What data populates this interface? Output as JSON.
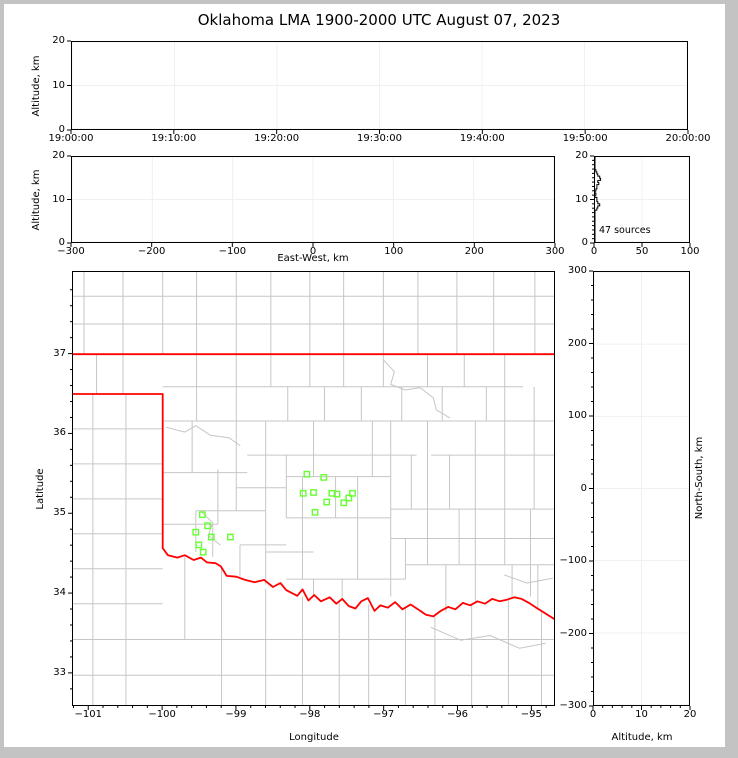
{
  "title": "Oklahoma LMA 1900-2000 UTC August 07, 2023",
  "colors": {
    "figure_frame": "#c3c3c3",
    "background": "#ffffff",
    "axis": "#000000",
    "grid": "#f0f0f0",
    "county": "#c6c6c6",
    "state_border": "#ff0000",
    "source_marker": "#66ff33",
    "histogram_line": "#000000"
  },
  "axes": {
    "p1": {
      "ylabel": "Altitude, km",
      "xlim": [
        0,
        3600
      ],
      "ylim": [
        0,
        20
      ],
      "xticks": [
        {
          "v": 0,
          "t": "19:00:00"
        },
        {
          "v": 600,
          "t": "19:10:00"
        },
        {
          "v": 1200,
          "t": "19:20:00"
        },
        {
          "v": 1800,
          "t": "19:30:00"
        },
        {
          "v": 2400,
          "t": "19:40:00"
        },
        {
          "v": 3000,
          "t": "19:50:00"
        },
        {
          "v": 3600,
          "t": "20:00:00"
        }
      ],
      "yticks": [
        {
          "v": 0,
          "t": "0"
        },
        {
          "v": 10,
          "t": "10"
        },
        {
          "v": 20,
          "t": "20"
        }
      ]
    },
    "p2": {
      "ylabel": "Altitude, km",
      "xlabel": "East-West, km",
      "xlim": [
        -300,
        300
      ],
      "ylim": [
        0,
        20
      ],
      "xticks": [
        {
          "v": -300,
          "t": "−300"
        },
        {
          "v": -200,
          "t": "−200"
        },
        {
          "v": -100,
          "t": "−100"
        },
        {
          "v": 0,
          "t": "0"
        },
        {
          "v": 100,
          "t": "100"
        },
        {
          "v": 200,
          "t": "200"
        },
        {
          "v": 300,
          "t": "300"
        }
      ],
      "yticks": [
        {
          "v": 0,
          "t": "0"
        },
        {
          "v": 10,
          "t": "10"
        },
        {
          "v": 20,
          "t": "20"
        }
      ]
    },
    "p3": {
      "annotation": "47 sources",
      "xlim": [
        0,
        100
      ],
      "ylim": [
        0,
        20
      ],
      "xticks": [
        {
          "v": 0,
          "t": "0"
        },
        {
          "v": 50,
          "t": "50"
        },
        {
          "v": 100,
          "t": "100"
        }
      ],
      "yticks": [
        {
          "v": 0,
          "t": "0"
        },
        {
          "v": 10,
          "t": "10"
        },
        {
          "v": 20,
          "t": "20"
        }
      ]
    },
    "p4": {
      "xlabel": "Longitude",
      "ylabel": "Latitude",
      "xlim": [
        -101.22,
        -94.68
      ],
      "ylim": [
        32.585,
        38.035
      ],
      "xticks": [
        {
          "v": -101,
          "t": "−101"
        },
        {
          "v": -100,
          "t": "−100"
        },
        {
          "v": -99,
          "t": "−99"
        },
        {
          "v": -98,
          "t": "−98"
        },
        {
          "v": -97,
          "t": "−97"
        },
        {
          "v": -96,
          "t": "−96"
        },
        {
          "v": -95,
          "t": "−95"
        }
      ],
      "yticks": [
        {
          "v": 33,
          "t": "33"
        },
        {
          "v": 34,
          "t": "34"
        },
        {
          "v": 35,
          "t": "35"
        },
        {
          "v": 36,
          "t": "36"
        },
        {
          "v": 37,
          "t": "37"
        }
      ]
    },
    "p5": {
      "xlabel": "Altitude, km",
      "ylabel": "North-South, km",
      "xlim": [
        0,
        20
      ],
      "ylim": [
        -300,
        300
      ],
      "xticks": [
        {
          "v": 0,
          "t": "0"
        },
        {
          "v": 10,
          "t": "10"
        },
        {
          "v": 20,
          "t": "20"
        }
      ],
      "yticks": [
        {
          "v": 300,
          "t": "300"
        },
        {
          "v": 200,
          "t": "200"
        },
        {
          "v": 100,
          "t": "100"
        },
        {
          "v": 0,
          "t": "0"
        },
        {
          "v": -100,
          "t": "−100"
        },
        {
          "v": -200,
          "t": "−200"
        },
        {
          "v": -300,
          "t": "−300"
        }
      ]
    }
  },
  "chart_data": [
    {
      "id": "time_height",
      "type": "scatter",
      "xlabel": "",
      "ylabel": "Altitude, km",
      "x_window_utc": [
        "19:00:00",
        "20:00:00"
      ],
      "ylim": [
        0,
        20
      ],
      "points": []
    },
    {
      "id": "ew_height",
      "type": "scatter",
      "xlabel": "East-West, km",
      "ylabel": "Altitude, km",
      "xlim": [
        -300,
        300
      ],
      "ylim": [
        0,
        20
      ],
      "points": []
    },
    {
      "id": "alt_histogram",
      "type": "line",
      "annotation": "47 sources",
      "total_sources": 47,
      "xlim": [
        0,
        100
      ],
      "ylim": [
        0,
        20
      ],
      "bins_alt0_alt1_count": [
        [
          7.5,
          8,
          2
        ],
        [
          8,
          8.5,
          3
        ],
        [
          8.5,
          9,
          5
        ],
        [
          9,
          9.5,
          3
        ],
        [
          9.5,
          10,
          2
        ],
        [
          10,
          10.5,
          2
        ],
        [
          11,
          11.5,
          1
        ],
        [
          12,
          12.5,
          1
        ],
        [
          12.5,
          13,
          2
        ],
        [
          13,
          13.5,
          2
        ],
        [
          13.5,
          14,
          4
        ],
        [
          14,
          14.5,
          3
        ],
        [
          14.5,
          15,
          6
        ],
        [
          15,
          15.5,
          5
        ],
        [
          15.5,
          16,
          3
        ],
        [
          16,
          16.5,
          2
        ],
        [
          16.5,
          17,
          1
        ]
      ]
    },
    {
      "id": "plan_view",
      "type": "scatter",
      "xlabel": "Longitude",
      "ylabel": "Latitude",
      "xlim": [
        -101.22,
        -94.68
      ],
      "ylim": [
        32.585,
        38.035
      ],
      "marker": "open-square",
      "marker_color": "#66ff33",
      "points": [
        [
          -98.04,
          35.49
        ],
        [
          -97.81,
          35.45
        ],
        [
          -98.09,
          35.25
        ],
        [
          -97.95,
          35.26
        ],
        [
          -97.7,
          35.25
        ],
        [
          -97.63,
          35.24
        ],
        [
          -97.77,
          35.14
        ],
        [
          -97.54,
          35.13
        ],
        [
          -97.47,
          35.19
        ],
        [
          -97.42,
          35.25
        ],
        [
          -97.93,
          35.01
        ],
        [
          -99.46,
          34.98
        ],
        [
          -99.39,
          34.84
        ],
        [
          -99.55,
          34.76
        ],
        [
          -99.34,
          34.7
        ],
        [
          -99.08,
          34.7
        ],
        [
          -99.51,
          34.6
        ],
        [
          -99.45,
          34.51
        ]
      ]
    },
    {
      "id": "ns_height",
      "type": "scatter",
      "xlabel": "Altitude, km",
      "ylabel": "North-South, km",
      "xlim": [
        0,
        20
      ],
      "ylim": [
        -300,
        300
      ],
      "points": []
    }
  ],
  "map": {
    "state_border": {
      "north": [
        [
          -101.22,
          37
        ],
        [
          -94.68,
          37
        ]
      ],
      "panhandle": [
        [
          -101.22,
          36.5
        ],
        [
          -100,
          36.5
        ],
        [
          -100,
          34.56
        ]
      ],
      "red_river": [
        [
          -100,
          34.56
        ],
        [
          -99.93,
          34.47
        ],
        [
          -99.8,
          34.44
        ],
        [
          -99.7,
          34.47
        ],
        [
          -99.58,
          34.41
        ],
        [
          -99.48,
          34.44
        ],
        [
          -99.4,
          34.38
        ],
        [
          -99.28,
          34.37
        ],
        [
          -99.21,
          34.33
        ],
        [
          -99.13,
          34.21
        ],
        [
          -99,
          34.2
        ],
        [
          -98.88,
          34.16
        ],
        [
          -98.75,
          34.13
        ],
        [
          -98.62,
          34.16
        ],
        [
          -98.5,
          34.07
        ],
        [
          -98.4,
          34.12
        ],
        [
          -98.32,
          34.03
        ],
        [
          -98.17,
          33.96
        ],
        [
          -98.1,
          34.04
        ],
        [
          -98.02,
          33.9
        ],
        [
          -97.94,
          33.97
        ],
        [
          -97.85,
          33.89
        ],
        [
          -97.73,
          33.94
        ],
        [
          -97.64,
          33.86
        ],
        [
          -97.56,
          33.92
        ],
        [
          -97.47,
          33.83
        ],
        [
          -97.38,
          33.8
        ],
        [
          -97.3,
          33.89
        ],
        [
          -97.21,
          33.93
        ],
        [
          -97.12,
          33.77
        ],
        [
          -97.04,
          33.84
        ],
        [
          -96.94,
          33.81
        ],
        [
          -96.84,
          33.88
        ],
        [
          -96.74,
          33.79
        ],
        [
          -96.63,
          33.85
        ],
        [
          -96.53,
          33.79
        ],
        [
          -96.42,
          33.72
        ],
        [
          -96.32,
          33.7
        ],
        [
          -96.22,
          33.77
        ],
        [
          -96.12,
          33.82
        ],
        [
          -96.02,
          33.79
        ],
        [
          -95.92,
          33.87
        ],
        [
          -95.82,
          33.84
        ],
        [
          -95.72,
          33.89
        ],
        [
          -95.62,
          33.86
        ],
        [
          -95.52,
          33.92
        ],
        [
          -95.42,
          33.89
        ],
        [
          -95.32,
          33.91
        ],
        [
          -95.22,
          33.94
        ],
        [
          -95.12,
          33.92
        ],
        [
          -95.02,
          33.87
        ],
        [
          -94.92,
          33.81
        ],
        [
          -94.82,
          33.75
        ],
        [
          -94.68,
          33.67
        ]
      ]
    },
    "county_cols": [
      [
        -101.07,
        37,
        38.04
      ],
      [
        -100.54,
        37,
        38.04
      ],
      [
        -100,
        37,
        38.04
      ],
      [
        -99.54,
        37,
        38.04
      ],
      [
        -99,
        37,
        38.04
      ],
      [
        -98.53,
        37,
        38.04
      ],
      [
        -98,
        37,
        38.04
      ],
      [
        -97.54,
        37,
        38.04
      ],
      [
        -97,
        37,
        38.04
      ],
      [
        -96.53,
        37,
        38.04
      ],
      [
        -96,
        37,
        38.04
      ],
      [
        -95.5,
        37,
        38.04
      ],
      [
        -94.94,
        37,
        38.04
      ],
      [
        -100.9,
        36.5,
        37
      ],
      [
        -100.54,
        36.5,
        37
      ],
      [
        -100.95,
        32.58,
        36.5
      ],
      [
        -100.5,
        32.58,
        36.5
      ],
      [
        -99.54,
        36.16,
        37
      ],
      [
        -99,
        36.16,
        37
      ],
      [
        -98.53,
        36.59,
        37
      ],
      [
        -98.3,
        36.16,
        36.59
      ],
      [
        -98,
        36.59,
        37
      ],
      [
        -97.8,
        36.16,
        36.59
      ],
      [
        -97.54,
        36.59,
        37
      ],
      [
        -97.3,
        36.16,
        36.59
      ],
      [
        -97,
        36.59,
        37
      ],
      [
        -96.75,
        36.16,
        36.59
      ],
      [
        -96.4,
        36.59,
        37
      ],
      [
        -96.2,
        36.16,
        36.59
      ],
      [
        -95.9,
        36.59,
        37
      ],
      [
        -95.6,
        36.16,
        36.59
      ],
      [
        -95.35,
        36.16,
        37
      ],
      [
        -94.95,
        36.16,
        36.59
      ],
      [
        -99.6,
        35.51,
        36.16
      ],
      [
        -99.25,
        34.86,
        35.55
      ],
      [
        -99,
        35.03,
        36.16
      ],
      [
        -98.6,
        34.6,
        36.16
      ],
      [
        -98.32,
        34.94,
        35.73
      ],
      [
        -98.1,
        34.17,
        35.46
      ],
      [
        -97.95,
        35.46,
        36.16
      ],
      [
        -97.65,
        34.94,
        35.46
      ],
      [
        -97.35,
        34.17,
        35.46
      ],
      [
        -97.15,
        35.46,
        36.16
      ],
      [
        -96.9,
        33.95,
        36.16
      ],
      [
        -96.62,
        35.05,
        35.73
      ],
      [
        -96.4,
        34.35,
        36.16
      ],
      [
        -96.1,
        35.05,
        35.73
      ],
      [
        -95.97,
        34.35,
        35.05
      ],
      [
        -95.75,
        35.05,
        36.16
      ],
      [
        -95.35,
        34.35,
        36.16
      ],
      [
        -95,
        33.95,
        35.05
      ],
      [
        -94.95,
        35.05,
        36.16
      ],
      [
        -99.55,
        34.51,
        35.03
      ],
      [
        -99.32,
        34.45,
        34.86
      ],
      [
        -98.95,
        34.2,
        34.6
      ],
      [
        -98.6,
        34.1,
        34.6
      ],
      [
        -97.95,
        33.95,
        34.17
      ],
      [
        -97.56,
        33.9,
        34.17
      ],
      [
        -96.7,
        34.17,
        34.68
      ],
      [
        -96.15,
        33.75,
        34.35
      ],
      [
        -95.75,
        33.88,
        35.05
      ],
      [
        -95.25,
        33.93,
        34.35
      ],
      [
        -94.9,
        33.8,
        34.35
      ],
      [
        -99.7,
        33.41,
        34.45
      ],
      [
        -99.2,
        32.58,
        34.32
      ],
      [
        -98.6,
        32.58,
        34.05
      ],
      [
        -98.1,
        32.58,
        33.95
      ],
      [
        -97.6,
        32.58,
        33.88
      ],
      [
        -97.2,
        32.58,
        33.85
      ],
      [
        -96.7,
        32.58,
        33.8
      ],
      [
        -96.3,
        32.58,
        33.69
      ],
      [
        -95.8,
        32.58,
        33.85
      ],
      [
        -95.3,
        32.58,
        33.9
      ],
      [
        -94.85,
        32.58,
        33.76
      ]
    ],
    "county_rows": [
      [
        37.38,
        -101.22,
        -94.68
      ],
      [
        37.73,
        -101.22,
        -94.68
      ],
      [
        36.06,
        -101.22,
        -100
      ],
      [
        35.62,
        -101.22,
        -100
      ],
      [
        35.18,
        -101.22,
        -100
      ],
      [
        34.74,
        -101.22,
        -100
      ],
      [
        34.3,
        -101.22,
        -100
      ],
      [
        33.86,
        -101.22,
        -100
      ],
      [
        33.41,
        -101.22,
        -94.68
      ],
      [
        32.96,
        -101.22,
        -94.68
      ],
      [
        36.59,
        -100,
        -95.1
      ],
      [
        36.16,
        -100,
        -94.68
      ],
      [
        35.73,
        -98.85,
        -96.55
      ],
      [
        35.73,
        -96.35,
        -94.68
      ],
      [
        35.51,
        -100,
        -98.85
      ],
      [
        35.46,
        -98.32,
        -96.9
      ],
      [
        35.32,
        -99,
        -98.32
      ],
      [
        35.03,
        -99.55,
        -98.6
      ],
      [
        34.94,
        -98.32,
        -96.9
      ],
      [
        35.05,
        -96.9,
        -94.68
      ],
      [
        34.86,
        -100,
        -99.25
      ],
      [
        34.51,
        -98.6,
        -97.95
      ],
      [
        34.6,
        -98.95,
        -98.32
      ],
      [
        34.68,
        -96.9,
        -94.68
      ],
      [
        34.35,
        -96.7,
        -94.68
      ],
      [
        34.17,
        -98.32,
        -96.7
      ]
    ],
    "rivers": [
      [
        [
          -99.95,
          36.08
        ],
        [
          -99.7,
          36.02
        ],
        [
          -99.55,
          36.1
        ],
        [
          -99.35,
          35.98
        ],
        [
          -99.1,
          35.95
        ],
        [
          -98.95,
          35.85
        ]
      ],
      [
        [
          -97.0,
          36.93
        ],
        [
          -96.85,
          36.78
        ],
        [
          -96.9,
          36.62
        ],
        [
          -96.7,
          36.55
        ],
        [
          -96.5,
          36.58
        ],
        [
          -96.32,
          36.45
        ],
        [
          -96.28,
          36.3
        ],
        [
          -96.1,
          36.2
        ]
      ],
      [
        [
          -96.35,
          33.56
        ],
        [
          -95.95,
          33.4
        ],
        [
          -95.55,
          33.46
        ],
        [
          -95.15,
          33.3
        ],
        [
          -94.8,
          33.36
        ]
      ],
      [
        [
          -95.35,
          34.22
        ],
        [
          -95.05,
          34.12
        ],
        [
          -94.7,
          34.18
        ]
      ],
      [
        [
          -99.48,
          35.02
        ],
        [
          -99.32,
          34.88
        ],
        [
          -99.38,
          34.72
        ],
        [
          -99.22,
          34.6
        ]
      ]
    ]
  }
}
